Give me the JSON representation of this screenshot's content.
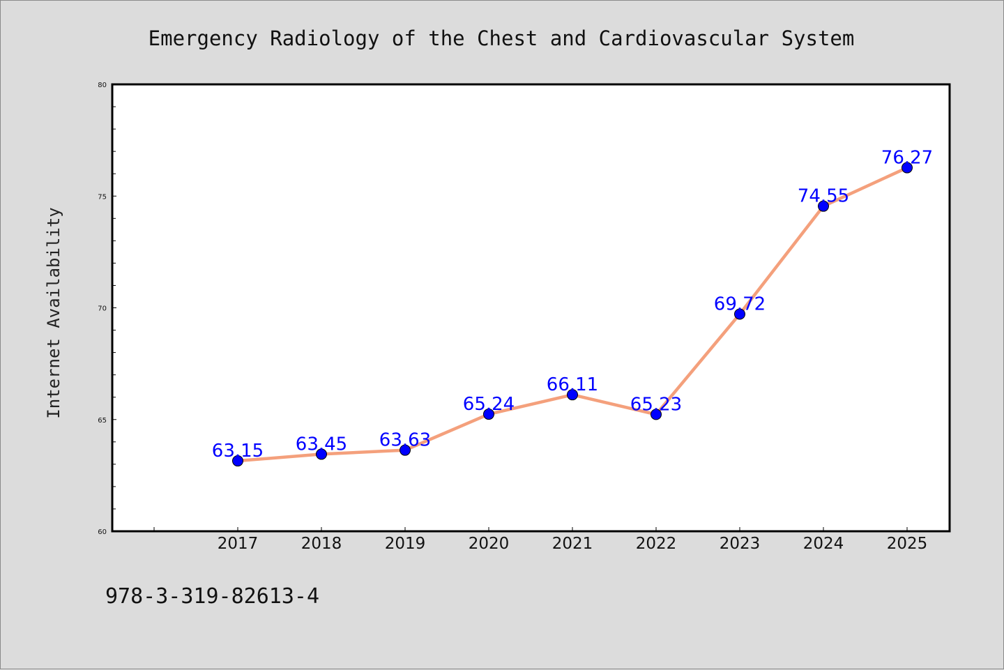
{
  "chart_data": {
    "type": "line",
    "title": "Emergency Radiology of the Chest and Cardiovascular System",
    "xlabel": "",
    "ylabel": "Internet Availability",
    "categories": [
      "2017",
      "2018",
      "2019",
      "2020",
      "2021",
      "2022",
      "2023",
      "2024",
      "2025"
    ],
    "series": [
      {
        "values": [
          63.15,
          63.45,
          63.63,
          65.24,
          66.11,
          65.23,
          69.72,
          74.55,
          76.27
        ],
        "labels": [
          "63.15",
          "63.45",
          "63.63",
          "65.24",
          "66.11",
          "65.23",
          "69.72",
          "74.55",
          "76.27"
        ],
        "line_color": "#f4a07c",
        "marker_color": "#0000ff"
      }
    ],
    "ylim": [
      60,
      80
    ],
    "yticks": [
      "60",
      "65",
      "70",
      "75",
      "80"
    ],
    "grid": false,
    "legend": "none"
  },
  "footer": {
    "isbn": "978-3-319-82613-4"
  },
  "colors": {
    "background": "#dcdcdc",
    "plot_background": "#ffffff",
    "label_color": "#0000ff"
  }
}
